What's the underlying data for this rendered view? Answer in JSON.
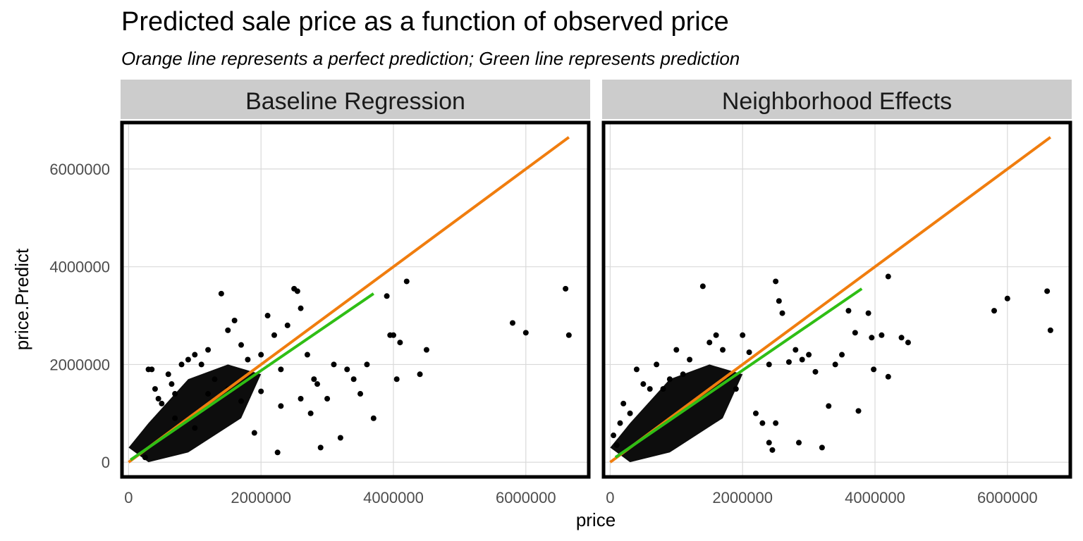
{
  "title": "Predicted sale price as a function of observed price",
  "subtitle": "Orange line represents a perfect prediction; Green line represents prediction",
  "chart_data": {
    "type": "scatter",
    "xlabel": "price",
    "ylabel": "price.Predict",
    "xlim": [
      -100000,
      6950000
    ],
    "ylim": [
      -300000,
      6950000
    ],
    "x_ticks": [
      0,
      2000000,
      4000000,
      6000000
    ],
    "y_ticks": [
      0,
      2000000,
      4000000,
      6000000
    ],
    "x_tick_labels": [
      "0",
      "2000000",
      "4000000",
      "6000000"
    ],
    "y_tick_labels": [
      "0",
      "2000000",
      "4000000",
      "6000000"
    ],
    "grid": true,
    "colors": {
      "perfect_line": "#f07d0e",
      "prediction_line": "#2fbe15",
      "points": "#000000",
      "strip": "#cccccc"
    },
    "panels": [
      {
        "name": "Baseline Regression",
        "points": [
          [
            250000,
            100000
          ],
          [
            300000,
            1900000
          ],
          [
            350000,
            1900000
          ],
          [
            400000,
            1500000
          ],
          [
            450000,
            1300000
          ],
          [
            500000,
            1200000
          ],
          [
            600000,
            1800000
          ],
          [
            650000,
            1600000
          ],
          [
            700000,
            1400000
          ],
          [
            800000,
            2000000
          ],
          [
            900000,
            2100000
          ],
          [
            1000000,
            2200000
          ],
          [
            1100000,
            2000000
          ],
          [
            1200000,
            2300000
          ],
          [
            1300000,
            1700000
          ],
          [
            1400000,
            3450000
          ],
          [
            1500000,
            2700000
          ],
          [
            1600000,
            2900000
          ],
          [
            1700000,
            2400000
          ],
          [
            1800000,
            2100000
          ],
          [
            1900000,
            600000
          ],
          [
            2000000,
            2200000
          ],
          [
            2100000,
            3000000
          ],
          [
            2200000,
            2600000
          ],
          [
            2250000,
            200000
          ],
          [
            2300000,
            1900000
          ],
          [
            2400000,
            2800000
          ],
          [
            2500000,
            3550000
          ],
          [
            2550000,
            3500000
          ],
          [
            2600000,
            3150000
          ],
          [
            2700000,
            2200000
          ],
          [
            2750000,
            1000000
          ],
          [
            2800000,
            1700000
          ],
          [
            2850000,
            1600000
          ],
          [
            2900000,
            300000
          ],
          [
            3000000,
            1300000
          ],
          [
            3100000,
            2000000
          ],
          [
            3200000,
            500000
          ],
          [
            3300000,
            1900000
          ],
          [
            3400000,
            1700000
          ],
          [
            3500000,
            1400000
          ],
          [
            3600000,
            2000000
          ],
          [
            3700000,
            900000
          ],
          [
            3900000,
            3400000
          ],
          [
            3950000,
            2600000
          ],
          [
            4000000,
            2600000
          ],
          [
            4050000,
            1700000
          ],
          [
            4100000,
            2450000
          ],
          [
            4200000,
            3700000
          ],
          [
            4400000,
            1800000
          ],
          [
            4500000,
            2300000
          ],
          [
            5800000,
            2850000
          ],
          [
            6000000,
            2650000
          ],
          [
            6600000,
            3550000
          ],
          [
            6650000,
            2600000
          ],
          [
            700000,
            900000
          ],
          [
            1000000,
            700000
          ],
          [
            1200000,
            1400000
          ],
          [
            1500000,
            1500000
          ],
          [
            1700000,
            1250000
          ],
          [
            2000000,
            1450000
          ],
          [
            2300000,
            1150000
          ],
          [
            2600000,
            1300000
          ]
        ],
        "perfect_line": {
          "x": [
            0,
            6650000
          ],
          "y": [
            0,
            6650000
          ]
        },
        "prediction_line": {
          "x": [
            30000,
            3700000
          ],
          "y": [
            50000,
            3450000
          ]
        }
      },
      {
        "name": "Neighborhood Effects",
        "points": [
          [
            50000,
            550000
          ],
          [
            100000,
            350000
          ],
          [
            150000,
            800000
          ],
          [
            200000,
            1200000
          ],
          [
            300000,
            1000000
          ],
          [
            400000,
            1900000
          ],
          [
            500000,
            1600000
          ],
          [
            600000,
            1500000
          ],
          [
            700000,
            2000000
          ],
          [
            800000,
            1500000
          ],
          [
            900000,
            1700000
          ],
          [
            1000000,
            2300000
          ],
          [
            1100000,
            1800000
          ],
          [
            1200000,
            2100000
          ],
          [
            1400000,
            3600000
          ],
          [
            1500000,
            2450000
          ],
          [
            1600000,
            2600000
          ],
          [
            1700000,
            2300000
          ],
          [
            1800000,
            1750000
          ],
          [
            1900000,
            1500000
          ],
          [
            2000000,
            2600000
          ],
          [
            2100000,
            2250000
          ],
          [
            2200000,
            1000000
          ],
          [
            2300000,
            800000
          ],
          [
            2400000,
            2000000
          ],
          [
            2500000,
            3700000
          ],
          [
            2550000,
            3300000
          ],
          [
            2600000,
            3050000
          ],
          [
            2700000,
            2050000
          ],
          [
            2800000,
            2300000
          ],
          [
            2850000,
            400000
          ],
          [
            2900000,
            2100000
          ],
          [
            3000000,
            2200000
          ],
          [
            3100000,
            1850000
          ],
          [
            3200000,
            300000
          ],
          [
            3300000,
            1150000
          ],
          [
            3400000,
            2000000
          ],
          [
            3500000,
            2200000
          ],
          [
            3600000,
            3100000
          ],
          [
            3700000,
            2650000
          ],
          [
            3750000,
            1050000
          ],
          [
            3900000,
            3050000
          ],
          [
            3950000,
            2550000
          ],
          [
            3980000,
            1900000
          ],
          [
            4100000,
            2600000
          ],
          [
            4200000,
            3800000
          ],
          [
            4200000,
            1750000
          ],
          [
            4400000,
            2550000
          ],
          [
            4500000,
            2450000
          ],
          [
            5800000,
            3100000
          ],
          [
            6000000,
            3350000
          ],
          [
            6600000,
            3500000
          ],
          [
            6650000,
            2700000
          ],
          [
            2400000,
            400000
          ],
          [
            2450000,
            250000
          ],
          [
            2500000,
            800000
          ]
        ],
        "perfect_line": {
          "x": [
            0,
            6650000
          ],
          "y": [
            0,
            6650000
          ]
        },
        "prediction_line": {
          "x": [
            80000,
            3800000
          ],
          "y": [
            100000,
            3550000
          ]
        }
      }
    ]
  }
}
